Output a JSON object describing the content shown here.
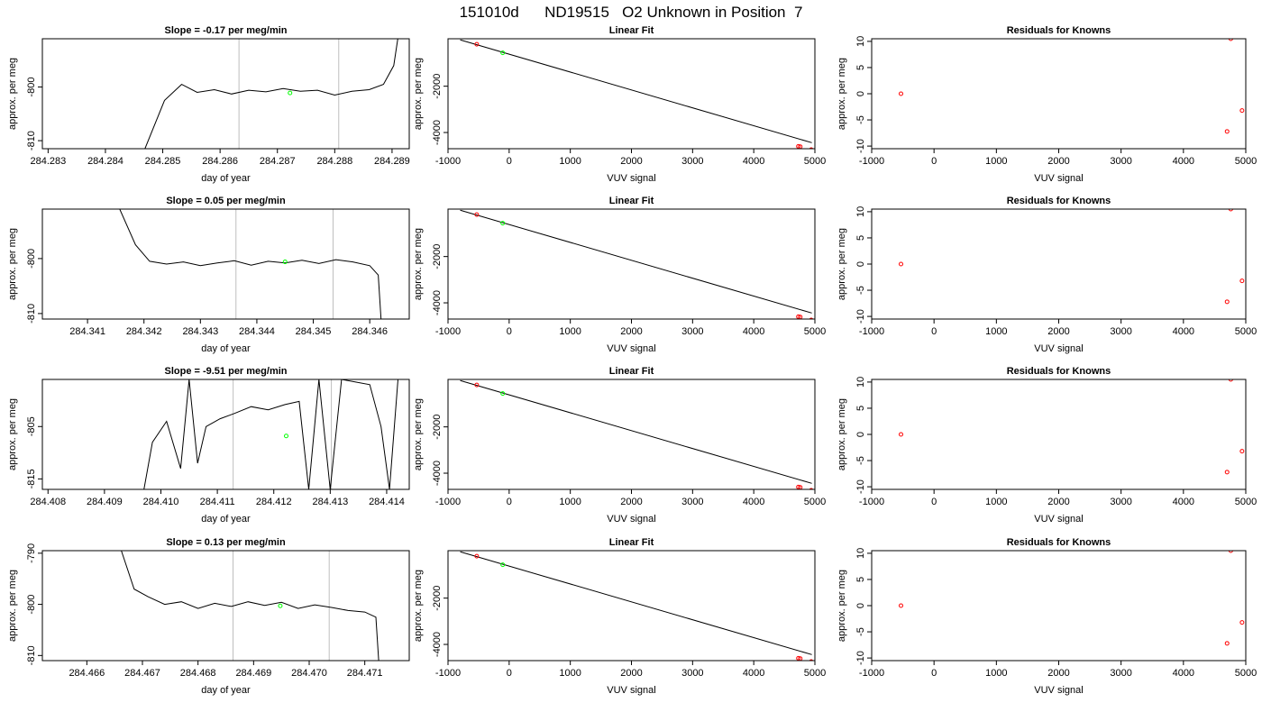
{
  "header": {
    "title": "151010d      ND19515   O2 Unknown in Position  7"
  },
  "chart_data": [
    {
      "type": "line",
      "title": "Slope =  -0.17  per meg/min",
      "xlabel": "day of year",
      "ylabel": "approx. per meg",
      "xlim": [
        284.2829,
        284.2893
      ],
      "ylim": [
        -811.5,
        -791
      ],
      "xticks": [
        "284.283",
        "284.284",
        "284.285",
        "284.286",
        "284.287",
        "284.288",
        "284.289"
      ],
      "yticks": [
        "-800",
        "-810"
      ],
      "ytick_values": [
        -800,
        -810
      ],
      "vlines": [
        284.28633,
        284.28807
      ],
      "point": {
        "x": 284.28722,
        "y": -801.1
      },
      "series": [
        {
          "x": [
            284.28469,
            284.28503,
            284.28533,
            284.2856,
            284.2859,
            284.2862,
            284.2865,
            284.2868,
            284.2871,
            284.2874,
            284.2877,
            284.288,
            284.2883,
            284.2886,
            284.28885,
            284.28903,
            284.2891
          ],
          "y": [
            -811.5,
            -802.5,
            -799.5,
            -801,
            -800.5,
            -801.3,
            -800.6,
            -800.9,
            -800.3,
            -800.8,
            -800.6,
            -801.5,
            -800.8,
            -800.5,
            -799.5,
            -796,
            -791
          ]
        }
      ]
    },
    {
      "type": "line",
      "title": "Slope =  0.05  per meg/min",
      "xlabel": "day of year",
      "ylabel": "approx. per meg",
      "xlim": [
        284.3402,
        284.3467
      ],
      "ylim": [
        -811,
        -791
      ],
      "xticks": [
        "284.341",
        "284.342",
        "284.343",
        "284.344",
        "284.345",
        "284.346"
      ],
      "yticks": [
        "-800",
        "-810"
      ],
      "ytick_values": [
        -800,
        -810
      ],
      "vlines": [
        284.34363,
        284.34535
      ],
      "point": {
        "x": 284.3445,
        "y": -800.6
      },
      "series": [
        {
          "x": [
            284.34157,
            284.34185,
            284.3421,
            284.3424,
            284.3427,
            284.343,
            284.3433,
            284.3436,
            284.3439,
            284.3442,
            284.3445,
            284.3448,
            284.3451,
            284.3454,
            284.3457,
            284.346,
            284.34615,
            284.3462
          ],
          "y": [
            -791,
            -797.5,
            -800.5,
            -801,
            -800.6,
            -801.3,
            -800.8,
            -800.4,
            -801.2,
            -800.5,
            -800.8,
            -800.3,
            -800.9,
            -800.2,
            -800.6,
            -801.3,
            -803,
            -811
          ]
        }
      ]
    },
    {
      "type": "line",
      "title": "Slope =  -9.51  per meg/min",
      "xlabel": "day of year",
      "ylabel": "approx. per meg",
      "xlim": [
        284.4079,
        284.4144
      ],
      "ylim": [
        -817,
        -796
      ],
      "xticks": [
        "284.408",
        "284.409",
        "284.410",
        "284.411",
        "284.412",
        "284.413",
        "284.414"
      ],
      "yticks": [
        "-805",
        "-815"
      ],
      "ytick_values": [
        -805,
        -815
      ],
      "vlines": [
        284.41128,
        284.41302
      ],
      "point": {
        "x": 284.41222,
        "y": -806.8
      },
      "series": [
        {
          "x": [
            284.4097,
            284.40985,
            284.4101,
            284.41035,
            284.4105,
            284.41065,
            284.4108,
            284.41105,
            284.4113,
            284.4116,
            284.4119,
            284.4122,
            284.41245,
            284.41262,
            284.4128,
            284.413,
            284.4132,
            284.41345,
            284.4137,
            284.4139,
            284.41405,
            284.4142
          ],
          "y": [
            -817,
            -808,
            -804,
            -813,
            -796,
            -812,
            -805,
            -803.5,
            -802.5,
            -801.2,
            -801.8,
            -800.8,
            -800.2,
            -817,
            -796,
            -817,
            -796,
            -796.5,
            -797,
            -805,
            -817,
            -796
          ]
        }
      ]
    },
    {
      "type": "line",
      "title": "Slope =  0.13  per meg/min",
      "xlabel": "day of year",
      "ylabel": "approx. per meg",
      "xlim": [
        284.4652,
        284.4718
      ],
      "ylim": [
        -811,
        -789.5
      ],
      "xticks": [
        "284.466",
        "284.467",
        "284.468",
        "284.469",
        "284.470",
        "284.471"
      ],
      "yticks": [
        "-790",
        "-800",
        "-810"
      ],
      "ytick_values": [
        -790,
        -800,
        -810
      ],
      "vlines": [
        284.46863,
        284.47036
      ],
      "point": {
        "x": 284.46948,
        "y": -800.3
      },
      "series": [
        {
          "x": [
            284.46662,
            284.46685,
            284.4671,
            284.4674,
            284.4677,
            284.468,
            284.4683,
            284.4686,
            284.4689,
            284.4692,
            284.4695,
            284.4698,
            284.4701,
            284.4704,
            284.4707,
            284.471,
            284.4712,
            284.47125
          ],
          "y": [
            -789.5,
            -797,
            -798.5,
            -800,
            -799.5,
            -800.8,
            -799.8,
            -800.4,
            -799.5,
            -800.2,
            -799.6,
            -800.8,
            -800.1,
            -800.6,
            -801.2,
            -801.5,
            -802.5,
            -811
          ]
        }
      ]
    },
    {
      "type": "scatter",
      "title": "Linear Fit",
      "xlabel": "VUV signal",
      "ylabel": "approx. per meg",
      "xlim": [
        -1000,
        5000
      ],
      "ylim": [
        -4700,
        50
      ],
      "xticks": [
        "-1000",
        "0",
        "1000",
        "2000",
        "3000",
        "4000",
        "5000"
      ],
      "xtick_values": [
        -1000,
        0,
        1000,
        2000,
        3000,
        4000,
        5000
      ],
      "yticks": [
        "-2000",
        "-4000"
      ],
      "ytick_values": [
        -2000,
        -4000
      ],
      "fit_line": {
        "x": [
          -800,
          4950
        ],
        "y": -4440
      },
      "knowns": {
        "x": [
          -530,
          4730,
          4760,
          4940
        ],
        "y": [
          -190,
          -4600,
          -4610,
          -4740
        ]
      },
      "unknown": {
        "x": -105,
        "y": -560
      }
    },
    {
      "type": "scatter",
      "title": "Residuals for Knowns",
      "xlabel": "VUV signal",
      "ylabel": "approx. per meg",
      "xlim": [
        -1000,
        5000
      ],
      "ylim": [
        -10.5,
        10.5
      ],
      "xticks": [
        "-1000",
        "0",
        "1000",
        "2000",
        "3000",
        "4000",
        "5000"
      ],
      "xtick_values": [
        -1000,
        0,
        1000,
        2000,
        3000,
        4000,
        5000
      ],
      "yticks": [
        "10",
        "5",
        "0",
        "-5",
        "-10"
      ],
      "ytick_values": [
        10,
        5,
        0,
        -5,
        -10
      ],
      "knowns": {
        "x": [
          -530,
          4700,
          4760,
          4940
        ],
        "y": [
          0,
          -7.2,
          10.5,
          -3.2
        ]
      }
    }
  ],
  "rows": [
    {
      "time_chart": 0,
      "fit_chart": 4,
      "resid_chart": 5
    },
    {
      "time_chart": 1,
      "fit_chart": 4,
      "resid_chart": 5
    },
    {
      "time_chart": 2,
      "fit_chart": 4,
      "resid_chart": 5
    },
    {
      "time_chart": 3,
      "fit_chart": 4,
      "resid_chart": 5
    }
  ],
  "colors": {
    "line": "#000000",
    "vline": "#bebebe",
    "known_point": "#ff0000",
    "unknown_point": "#00ff00",
    "axis": "#000000"
  }
}
